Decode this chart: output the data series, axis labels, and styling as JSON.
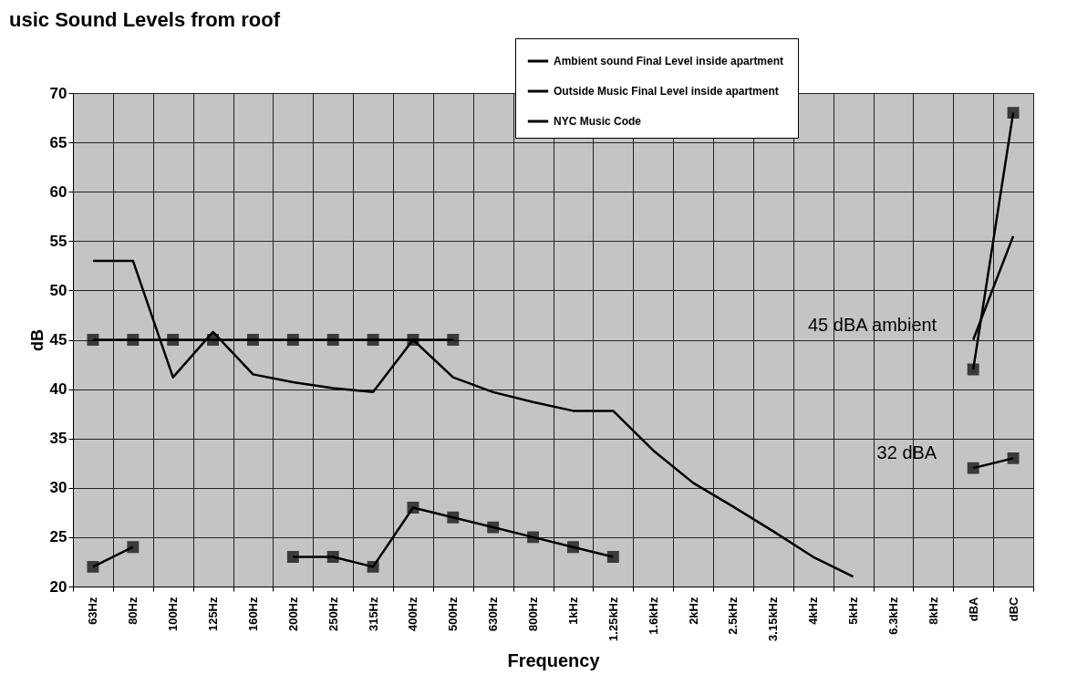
{
  "chart_data": {
    "type": "line",
    "title": "usic Sound Levels from roof",
    "xlabel": "Frequency",
    "ylabel": "dB",
    "categories": [
      "63Hz",
      "80Hz",
      "100Hz",
      "125Hz",
      "160Hz",
      "200Hz",
      "250Hz",
      "315Hz",
      "400Hz",
      "500Hz",
      "630Hz",
      "800Hz",
      "1kHz",
      "1.25kHz",
      "1.6kHz",
      "2kHz",
      "2.5kHz",
      "3.15kHz",
      "4kHz",
      "5kHz",
      "6.3kHz",
      "8kHz",
      "dBA",
      "dBC"
    ],
    "series": [
      {
        "name": "Ambient sound  Final Level inside apartment",
        "color": "#000000",
        "marker": "none",
        "values": [
          53,
          53,
          41.2,
          45.8,
          41.5,
          40.7,
          40.1,
          39.7,
          45,
          41.2,
          39.7,
          38.7,
          37.8,
          37.8,
          33.8,
          30.5,
          28.1,
          25.6,
          23,
          21,
          null,
          null,
          45,
          55.5
        ]
      },
      {
        "name": "Outside Music Final Level inside apartment",
        "color": "#000000",
        "marker": "square",
        "values": [
          22,
          24,
          null,
          null,
          null,
          23,
          23,
          22,
          28,
          27,
          26,
          25,
          24,
          23,
          null,
          null,
          null,
          null,
          null,
          null,
          null,
          null,
          32,
          33
        ]
      },
      {
        "name": "NYC Music Code",
        "color": "#000000",
        "marker": "square",
        "values": [
          45,
          45,
          45,
          45,
          45,
          45,
          45,
          45,
          45,
          45,
          null,
          null,
          null,
          null,
          null,
          null,
          null,
          null,
          null,
          null,
          null,
          null,
          42,
          68
        ]
      }
    ],
    "ylim": [
      20,
      70
    ],
    "yticks": [
      20,
      25,
      30,
      35,
      40,
      45,
      50,
      55,
      60,
      65,
      70
    ],
    "grid": true,
    "legend": "top right",
    "annotations": [
      {
        "text": "45 dBA ambient",
        "x": "dBA",
        "y": 45
      },
      {
        "text": "32 dBA",
        "x": "dBA",
        "y": 32
      }
    ]
  }
}
